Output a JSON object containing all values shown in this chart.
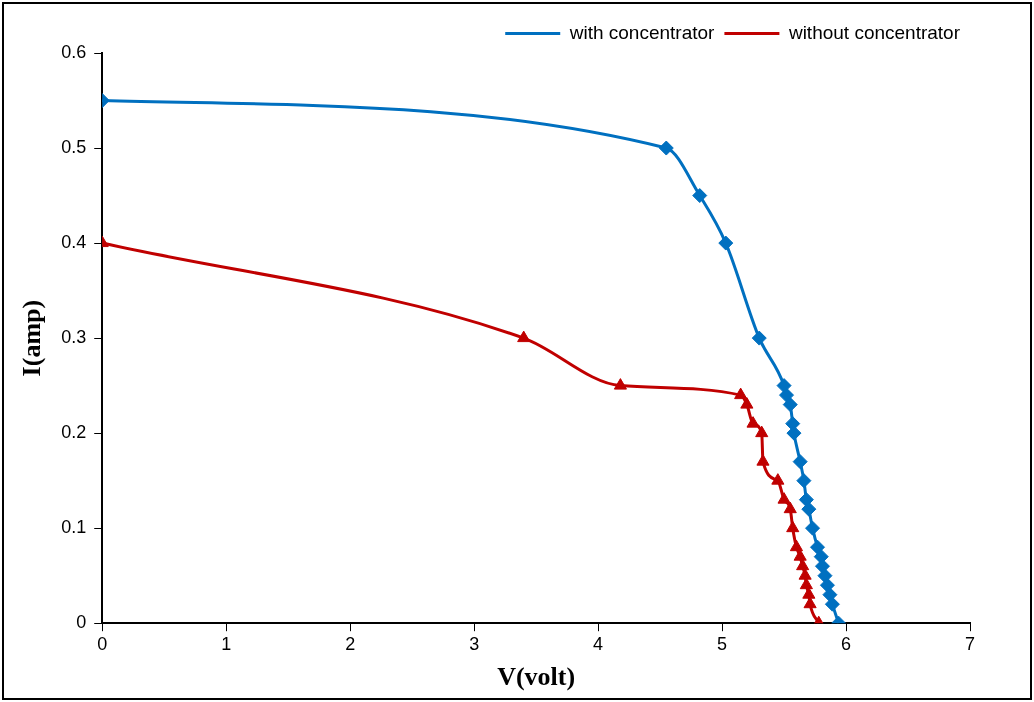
{
  "chart_data": {
    "type": "line",
    "xlabel": "V(volt)",
    "ylabel": "I(amp)",
    "xlim": [
      0,
      7
    ],
    "xticks": [
      0,
      1,
      2,
      3,
      4,
      5,
      6,
      7
    ],
    "ylim": [
      0,
      0.6
    ],
    "yticks": [
      0,
      0.1,
      0.2,
      0.3,
      0.4,
      0.5,
      0.6
    ],
    "grid": false,
    "legend": "top right",
    "series": [
      {
        "name": "with concentrator",
        "color": "#0070c0",
        "marker": "diamond",
        "x": [
          0,
          4.55,
          4.82,
          5.03,
          5.3,
          5.5,
          5.52,
          5.55,
          5.57,
          5.58,
          5.63,
          5.66,
          5.68,
          5.7,
          5.73,
          5.77,
          5.8,
          5.81,
          5.83,
          5.85,
          5.87,
          5.89,
          5.94
        ],
        "values": [
          0.55,
          0.5,
          0.45,
          0.4,
          0.3,
          0.25,
          0.24,
          0.23,
          0.21,
          0.2,
          0.17,
          0.15,
          0.13,
          0.12,
          0.1,
          0.08,
          0.07,
          0.06,
          0.05,
          0.04,
          0.03,
          0.02,
          0
        ]
      },
      {
        "name": "without concentrator",
        "color": "#c00000",
        "marker": "triangle",
        "x": [
          0,
          3.4,
          4.18,
          5.15,
          5.2,
          5.25,
          5.32,
          5.33,
          5.45,
          5.5,
          5.55,
          5.57,
          5.6,
          5.63,
          5.65,
          5.67,
          5.68,
          5.7,
          5.71,
          5.78
        ],
        "values": [
          0.4,
          0.3,
          0.25,
          0.24,
          0.23,
          0.21,
          0.2,
          0.17,
          0.15,
          0.13,
          0.12,
          0.1,
          0.08,
          0.07,
          0.06,
          0.05,
          0.04,
          0.03,
          0.02,
          0
        ]
      }
    ]
  }
}
